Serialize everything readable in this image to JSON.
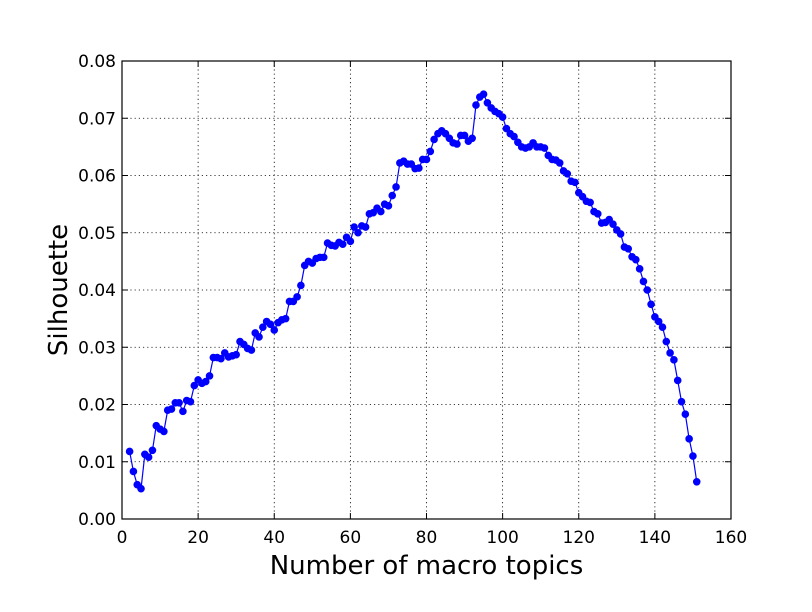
{
  "colors": {
    "series": "#0000ff",
    "background": "#ffffff",
    "axes": "#000000"
  },
  "chart_data": {
    "type": "line",
    "title": "",
    "xlabel": "Number of macro topics",
    "ylabel": "Silhouette",
    "xlim": [
      0,
      160
    ],
    "ylim": [
      0.0,
      0.08
    ],
    "xticks": [
      0,
      20,
      40,
      60,
      80,
      100,
      120,
      140,
      160
    ],
    "xtick_labels": [
      "0",
      "20",
      "40",
      "60",
      "80",
      "100",
      "120",
      "140",
      "160"
    ],
    "yticks": [
      0.0,
      0.01,
      0.02,
      0.03,
      0.04,
      0.05,
      0.06,
      0.07,
      0.08
    ],
    "ytick_labels": [
      "0.00",
      "0.01",
      "0.02",
      "0.03",
      "0.04",
      "0.05",
      "0.06",
      "0.07",
      "0.08"
    ],
    "grid": true,
    "legend": "none",
    "marker": "circle",
    "series": [
      {
        "color": "#0000ff",
        "x": [
          2,
          3,
          4,
          5,
          6,
          7,
          8,
          9,
          10,
          11,
          12,
          13,
          14,
          15,
          16,
          17,
          18,
          19,
          20,
          21,
          22,
          23,
          24,
          25,
          26,
          27,
          28,
          29,
          30,
          31,
          32,
          33,
          34,
          35,
          36,
          37,
          38,
          39,
          40,
          41,
          42,
          43,
          44,
          45,
          46,
          47,
          48,
          49,
          50,
          51,
          52,
          53,
          54,
          55,
          56,
          57,
          58,
          59,
          60,
          61,
          62,
          63,
          64,
          65,
          66,
          67,
          68,
          69,
          70,
          71,
          72,
          73,
          74,
          75,
          76,
          77,
          78,
          79,
          80,
          81,
          82,
          83,
          84,
          85,
          86,
          87,
          88,
          89,
          90,
          91,
          92,
          93,
          94,
          95,
          96,
          97,
          98,
          99,
          100,
          101,
          102,
          103,
          104,
          105,
          106,
          107,
          108,
          109,
          110,
          111,
          112,
          113,
          114,
          115,
          116,
          117,
          118,
          119,
          120,
          121,
          122,
          123,
          124,
          125,
          126,
          127,
          128,
          129,
          130,
          131,
          132,
          133,
          134,
          135,
          136,
          137,
          138,
          139,
          140,
          141,
          142,
          143,
          144,
          145,
          146,
          147,
          148,
          149,
          150,
          151
        ],
        "y": [
          0.0118,
          0.0083,
          0.006,
          0.0053,
          0.0113,
          0.0108,
          0.012,
          0.0163,
          0.0157,
          0.0153,
          0.019,
          0.0192,
          0.0203,
          0.0203,
          0.0188,
          0.0207,
          0.0205,
          0.0233,
          0.0243,
          0.0237,
          0.024,
          0.025,
          0.0282,
          0.0282,
          0.028,
          0.029,
          0.0283,
          0.0285,
          0.0287,
          0.031,
          0.0305,
          0.0298,
          0.0295,
          0.0325,
          0.0318,
          0.0335,
          0.0345,
          0.034,
          0.033,
          0.0343,
          0.0348,
          0.035,
          0.038,
          0.038,
          0.0388,
          0.0408,
          0.0443,
          0.045,
          0.0447,
          0.0455,
          0.0457,
          0.0457,
          0.0482,
          0.0478,
          0.0477,
          0.0483,
          0.048,
          0.0492,
          0.0485,
          0.051,
          0.05,
          0.0512,
          0.051,
          0.0533,
          0.0535,
          0.0543,
          0.0537,
          0.055,
          0.0547,
          0.0565,
          0.058,
          0.0622,
          0.0625,
          0.062,
          0.062,
          0.0612,
          0.0613,
          0.0628,
          0.0628,
          0.0642,
          0.0663,
          0.0673,
          0.0678,
          0.0673,
          0.0665,
          0.0657,
          0.0655,
          0.067,
          0.067,
          0.066,
          0.0665,
          0.0723,
          0.0737,
          0.0742,
          0.0727,
          0.0718,
          0.0712,
          0.0708,
          0.0702,
          0.0682,
          0.0673,
          0.0668,
          0.0658,
          0.065,
          0.0648,
          0.065,
          0.0657,
          0.065,
          0.065,
          0.0648,
          0.0635,
          0.0628,
          0.0627,
          0.0622,
          0.0608,
          0.0603,
          0.059,
          0.0588,
          0.057,
          0.0563,
          0.0555,
          0.0553,
          0.0537,
          0.0533,
          0.0517,
          0.0518,
          0.0523,
          0.0515,
          0.0505,
          0.0498,
          0.0475,
          0.0472,
          0.0458,
          0.0453,
          0.0437,
          0.0415,
          0.04,
          0.0375,
          0.0353,
          0.0345,
          0.0335,
          0.031,
          0.029,
          0.0278,
          0.0242,
          0.0205,
          0.0183,
          0.014,
          0.011,
          0.0065
        ]
      }
    ]
  }
}
